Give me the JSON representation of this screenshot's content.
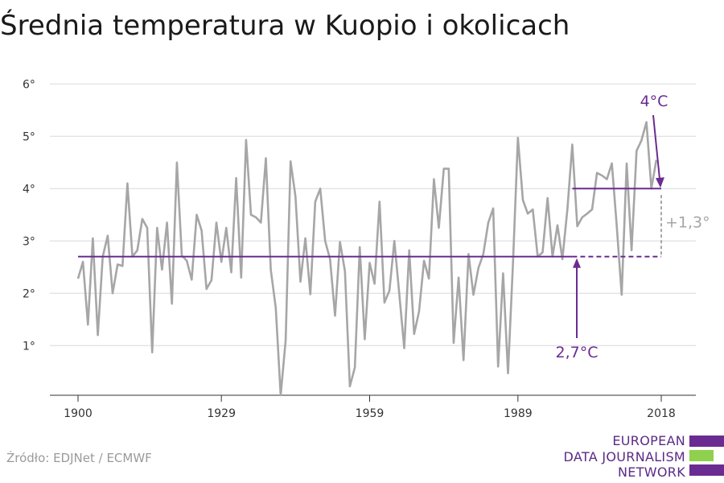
{
  "title": "Średnia temperatura w Kuopio i okolicach",
  "source": "Źródło: EDJNet / ECMWF",
  "logo": {
    "lines": [
      "EUROPEAN",
      "DATA JOURNALISM",
      "NETWORK"
    ],
    "bar_colors": [
      "#6a2c91",
      "#8fd14f",
      "#6a2c91"
    ]
  },
  "colors": {
    "series": "#a6a6a6",
    "accent": "#6a2c91",
    "delta": "#a6a6a6",
    "grid": "#d9d9d9"
  },
  "chart_data": {
    "type": "line",
    "x_ticks": [
      1900,
      1929,
      1959,
      1989,
      2018
    ],
    "y_ticks": [
      1,
      2,
      3,
      4,
      5,
      6
    ],
    "y_tick_labels": [
      "1°",
      "2°",
      "3°",
      "4°",
      "5°",
      "6°"
    ],
    "xlim": [
      1900,
      2018
    ],
    "ylim": [
      0.05,
      6.05
    ],
    "series": [
      {
        "x_start": 1900,
        "values": [
          2.28,
          2.6,
          1.4,
          3.05,
          1.2,
          2.7,
          3.1,
          2.0,
          2.55,
          2.52,
          4.1,
          2.7,
          2.82,
          3.42,
          3.25,
          0.87,
          3.25,
          2.45,
          3.35,
          1.8,
          4.5,
          2.72,
          2.62,
          2.26,
          3.5,
          3.2,
          2.08,
          2.25,
          3.35,
          2.6,
          3.25,
          2.4,
          4.2,
          2.3,
          4.93,
          3.5,
          3.45,
          3.35,
          4.58,
          2.45,
          1.72,
          0.05,
          1.1,
          4.52,
          3.85,
          2.22,
          3.05,
          1.98,
          3.75,
          4.0,
          3.0,
          2.65,
          1.57,
          2.98,
          2.42,
          0.22,
          0.58,
          2.88,
          1.12,
          2.58,
          2.18,
          3.75,
          1.82,
          2.05,
          3.0,
          1.98,
          0.95,
          2.82,
          1.22,
          1.65,
          2.62,
          2.28,
          4.18,
          3.25,
          4.38,
          4.38,
          1.05,
          2.3,
          0.72,
          2.75,
          1.97,
          2.48,
          2.75,
          3.35,
          3.62,
          0.6,
          2.38,
          0.47,
          2.58,
          4.97,
          3.78,
          3.52,
          3.6,
          2.7,
          2.78,
          3.82,
          2.7,
          3.3,
          2.65,
          3.6,
          4.84,
          3.28,
          3.45,
          3.52,
          3.6,
          4.3,
          4.25,
          4.18,
          4.48,
          3.28,
          1.97,
          4.48,
          2.82,
          4.72,
          4.92,
          5.27,
          4.0,
          4.55
        ]
      }
    ],
    "annotations": {
      "baseline": {
        "value": 2.7,
        "label": "2,7°C",
        "x_from": 1900,
        "x_solid_to": 2000,
        "x_dashed_to": 2018
      },
      "recent": {
        "value": 4.0,
        "label": "4°C",
        "x_from": 2000,
        "x_to": 2018
      },
      "delta": {
        "label": "+1,3°"
      }
    }
  }
}
